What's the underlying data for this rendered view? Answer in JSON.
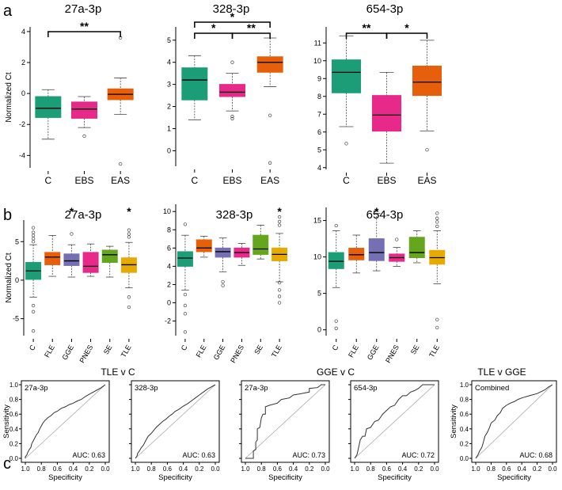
{
  "figure": {
    "panel_a_letter": "a",
    "panel_b_letter": "b",
    "panel_c_letter": "c"
  },
  "colors": {
    "C": "#1b9e77",
    "EBS": "#e7298a",
    "EAS": "#e6600c",
    "FLE": "#e6600c",
    "GGE": "#7570b3",
    "PNES": "#e7298a",
    "SE": "#66a61e",
    "TLE": "#e6ab02"
  },
  "chart_data": [
    {
      "type": "box",
      "id": "a1",
      "title": "27a-3p",
      "ylabel": "Normalized Ct",
      "ylim": [
        -4.8,
        4.3
      ],
      "yticks": [
        -4,
        -2,
        0,
        2,
        4
      ],
      "categories": [
        "C",
        "EBS",
        "EAS"
      ],
      "boxes": [
        {
          "cat": "C",
          "min": -2.95,
          "q1": -1.55,
          "median": -0.95,
          "q3": -0.2,
          "max": 0.25,
          "outliers": []
        },
        {
          "cat": "EBS",
          "min": -2.2,
          "q1": -1.6,
          "median": -1.0,
          "q3": -0.55,
          "max": -0.2,
          "outliers": [
            -2.75
          ]
        },
        {
          "cat": "EAS",
          "min": -1.35,
          "q1": -0.4,
          "median": -0.05,
          "q3": 0.3,
          "max": 1.0,
          "outliers": [
            3.6,
            -4.55
          ]
        }
      ],
      "brackets": [
        {
          "from": "C",
          "to": "EAS",
          "level": 0,
          "label": "**"
        }
      ]
    },
    {
      "type": "box",
      "id": "a2",
      "title": "328-3p",
      "ylabel": "",
      "ylim": [
        -0.7,
        5.6
      ],
      "yticks": [
        0,
        1,
        2,
        3,
        4,
        5
      ],
      "categories": [
        "C",
        "EBS",
        "EAS"
      ],
      "boxes": [
        {
          "cat": "C",
          "min": 1.4,
          "q1": 2.3,
          "median": 3.2,
          "q3": 3.75,
          "max": 4.3,
          "outliers": []
        },
        {
          "cat": "EBS",
          "min": 1.8,
          "q1": 2.45,
          "median": 2.65,
          "q3": 3.0,
          "max": 3.5,
          "outliers": [
            4.0,
            1.55,
            1.45
          ]
        },
        {
          "cat": "EAS",
          "min": 2.9,
          "q1": 3.55,
          "median": 4.0,
          "q3": 4.25,
          "max": 5.1,
          "outliers": [
            1.6,
            -0.55
          ]
        }
      ],
      "brackets": [
        {
          "from": "C",
          "to": "EBS",
          "level": 0,
          "label": "*"
        },
        {
          "from": "EBS",
          "to": "EAS",
          "level": 0,
          "label": "**"
        },
        {
          "from": "C",
          "to": "EAS",
          "level": 1,
          "label": "*"
        }
      ]
    },
    {
      "type": "box",
      "id": "a3",
      "title": "654-3p",
      "ylabel": "",
      "ylim": [
        3.9,
        11.9
      ],
      "yticks": [
        4,
        5,
        6,
        7,
        8,
        9,
        10,
        11
      ],
      "categories": [
        "C",
        "EBS",
        "EAS"
      ],
      "boxes": [
        {
          "cat": "C",
          "min": 6.3,
          "q1": 8.2,
          "median": 9.35,
          "q3": 10.05,
          "max": 11.4,
          "outliers": [
            5.35
          ]
        },
        {
          "cat": "EBS",
          "min": 4.25,
          "q1": 6.05,
          "median": 6.95,
          "q3": 8.05,
          "max": 9.35,
          "outliers": []
        },
        {
          "cat": "EAS",
          "min": 6.05,
          "q1": 8.05,
          "median": 8.8,
          "q3": 9.7,
          "max": 11.15,
          "outliers": [
            5.0
          ]
        }
      ],
      "brackets": [
        {
          "from": "C",
          "to": "EBS",
          "level": 0,
          "label": "**"
        },
        {
          "from": "EBS",
          "to": "EAS",
          "level": 0,
          "label": "*"
        }
      ]
    },
    {
      "type": "box",
      "id": "b1",
      "title": "27a-3p",
      "ylabel": "Normalized Ct",
      "ylim": [
        -7.2,
        7.8
      ],
      "yticks": [
        -5,
        0,
        5
      ],
      "categories": [
        "C",
        "FLE",
        "GGE",
        "PNES",
        "SE",
        "TLE"
      ],
      "boxes": [
        {
          "cat": "C",
          "min": -2.2,
          "q1": 0.1,
          "median": 1.2,
          "q3": 2.3,
          "max": 4.6,
          "outliers": [
            6.8,
            6.2,
            5.8,
            5.4,
            5.0,
            -3.3,
            -4.1,
            -6.6
          ]
        },
        {
          "cat": "FLE",
          "min": 0.5,
          "q1": 2.0,
          "median": 3.0,
          "q3": 3.6,
          "max": 5.8,
          "outliers": []
        },
        {
          "cat": "GGE",
          "min": 0.4,
          "q1": 1.9,
          "median": 2.5,
          "q3": 3.4,
          "max": 4.6,
          "outliers": [
            6.0
          ]
        },
        {
          "cat": "PNES",
          "min": 0.5,
          "q1": 1.0,
          "median": 1.8,
          "q3": 3.6,
          "max": 4.7,
          "outliers": []
        },
        {
          "cat": "SE",
          "min": 0.4,
          "q1": 2.3,
          "median": 3.3,
          "q3": 3.9,
          "max": 4.4,
          "outliers": []
        },
        {
          "cat": "TLE",
          "min": -1.0,
          "q1": 1.0,
          "median": 2.0,
          "q3": 2.9,
          "max": 4.9,
          "outliers": [
            6.5,
            6.0,
            5.6,
            -2.2,
            -3.5
          ]
        }
      ],
      "stars": [
        {
          "cat": "GGE",
          "label": "*"
        },
        {
          "cat": "TLE",
          "label": "*"
        }
      ]
    },
    {
      "type": "box",
      "id": "b2",
      "title": "328-3p",
      "ylabel": "",
      "ylim": [
        -3.6,
        10.8
      ],
      "yticks": [
        -2,
        0,
        2,
        4,
        6,
        8,
        10
      ],
      "categories": [
        "C",
        "FLE",
        "GGE",
        "PNES",
        "SE",
        "TLE"
      ],
      "boxes": [
        {
          "cat": "C",
          "min": 1.4,
          "q1": 4.0,
          "median": 4.9,
          "q3": 5.6,
          "max": 7.4,
          "outliers": [
            8.6,
            0.9,
            -0.3,
            -1.2,
            -3.2
          ]
        },
        {
          "cat": "FLE",
          "min": 5.0,
          "q1": 5.6,
          "median": 6.0,
          "q3": 6.9,
          "max": 7.3,
          "outliers": []
        },
        {
          "cat": "GGE",
          "min": 3.4,
          "q1": 5.0,
          "median": 5.6,
          "q3": 6.0,
          "max": 7.1,
          "outliers": [
            2.3,
            1.9
          ]
        },
        {
          "cat": "PNES",
          "min": 4.1,
          "q1": 5.0,
          "median": 5.5,
          "q3": 6.0,
          "max": 6.5,
          "outliers": []
        },
        {
          "cat": "SE",
          "min": 4.8,
          "q1": 5.3,
          "median": 5.9,
          "q3": 7.4,
          "max": 8.5,
          "outliers": []
        },
        {
          "cat": "TLE",
          "min": 2.3,
          "q1": 4.6,
          "median": 5.3,
          "q3": 6.0,
          "max": 7.6,
          "outliers": [
            9.4,
            8.9,
            8.5,
            2.2,
            1.4,
            0.7,
            0.0
          ]
        }
      ],
      "stars": [
        {
          "cat": "TLE",
          "label": "*"
        }
      ]
    },
    {
      "type": "box",
      "id": "b3",
      "title": "654-3p",
      "ylabel": "",
      "ylim": [
        -0.8,
        16.8
      ],
      "yticks": [
        0,
        5,
        10,
        15
      ],
      "categories": [
        "C",
        "FLE",
        "GGE",
        "PNES",
        "SE",
        "TLE"
      ],
      "boxes": [
        {
          "cat": "C",
          "min": 5.8,
          "q1": 8.4,
          "median": 9.4,
          "q3": 10.6,
          "max": 13.6,
          "outliers": [
            14.3,
            1.2,
            0.2
          ]
        },
        {
          "cat": "FLE",
          "min": 7.8,
          "q1": 9.6,
          "median": 10.3,
          "q3": 11.2,
          "max": 13.0,
          "outliers": []
        },
        {
          "cat": "GGE",
          "min": 8.1,
          "q1": 9.5,
          "median": 10.6,
          "q3": 12.5,
          "max": 16.0,
          "outliers": []
        },
        {
          "cat": "PNES",
          "min": 8.7,
          "q1": 9.4,
          "median": 9.9,
          "q3": 10.4,
          "max": 11.3,
          "outliers": [
            12.4
          ]
        },
        {
          "cat": "SE",
          "min": 9.2,
          "q1": 9.9,
          "median": 10.6,
          "q3": 12.7,
          "max": 13.6,
          "outliers": []
        },
        {
          "cat": "TLE",
          "min": 6.3,
          "q1": 9.0,
          "median": 9.9,
          "q3": 10.9,
          "max": 13.6,
          "outliers": [
            16.0,
            15.3,
            14.8,
            14.2,
            1.4,
            0.3
          ]
        }
      ],
      "stars": [
        {
          "cat": "GGE",
          "label": "*"
        }
      ]
    },
    {
      "type": "line",
      "id": "c1",
      "label": "27a-3p",
      "auc": "AUC: 0.63",
      "xlabel": "Specificity",
      "ylabel": "Sensitivity",
      "points": [
        [
          1.0,
          0.0
        ],
        [
          1.0,
          0.02
        ],
        [
          0.98,
          0.05
        ],
        [
          0.97,
          0.08
        ],
        [
          0.95,
          0.12
        ],
        [
          0.93,
          0.15
        ],
        [
          0.92,
          0.2
        ],
        [
          0.9,
          0.24
        ],
        [
          0.88,
          0.28
        ],
        [
          0.86,
          0.32
        ],
        [
          0.84,
          0.35
        ],
        [
          0.82,
          0.4
        ],
        [
          0.8,
          0.44
        ],
        [
          0.78,
          0.48
        ],
        [
          0.75,
          0.52
        ],
        [
          0.72,
          0.55
        ],
        [
          0.68,
          0.58
        ],
        [
          0.64,
          0.62
        ],
        [
          0.6,
          0.64
        ],
        [
          0.55,
          0.68
        ],
        [
          0.5,
          0.7
        ],
        [
          0.45,
          0.73
        ],
        [
          0.4,
          0.75
        ],
        [
          0.35,
          0.78
        ],
        [
          0.3,
          0.8
        ],
        [
          0.25,
          0.84
        ],
        [
          0.2,
          0.87
        ],
        [
          0.15,
          0.9
        ],
        [
          0.1,
          0.93
        ],
        [
          0.05,
          0.96
        ],
        [
          0.0,
          1.0
        ]
      ]
    },
    {
      "type": "line",
      "id": "c2",
      "label": "328-3p",
      "auc": "AUC: 0.63",
      "xlabel": "Specificity",
      "ylabel": "",
      "points": [
        [
          1.0,
          0.0
        ],
        [
          0.98,
          0.03
        ],
        [
          0.97,
          0.07
        ],
        [
          0.95,
          0.1
        ],
        [
          0.93,
          0.14
        ],
        [
          0.9,
          0.18
        ],
        [
          0.88,
          0.22
        ],
        [
          0.86,
          0.26
        ],
        [
          0.84,
          0.3
        ],
        [
          0.8,
          0.34
        ],
        [
          0.77,
          0.38
        ],
        [
          0.74,
          0.42
        ],
        [
          0.7,
          0.46
        ],
        [
          0.66,
          0.5
        ],
        [
          0.62,
          0.53
        ],
        [
          0.58,
          0.57
        ],
        [
          0.54,
          0.6
        ],
        [
          0.5,
          0.64
        ],
        [
          0.45,
          0.67
        ],
        [
          0.4,
          0.71
        ],
        [
          0.35,
          0.74
        ],
        [
          0.3,
          0.78
        ],
        [
          0.25,
          0.82
        ],
        [
          0.2,
          0.86
        ],
        [
          0.15,
          0.9
        ],
        [
          0.1,
          0.94
        ],
        [
          0.05,
          0.97
        ],
        [
          0.0,
          1.0
        ]
      ]
    },
    {
      "type": "line",
      "id": "c3",
      "label": "27a-3p",
      "auc": "AUC: 0.73",
      "xlabel": "Specificity",
      "ylabel": "",
      "points": [
        [
          1.0,
          0.0
        ],
        [
          0.9,
          0.0
        ],
        [
          0.9,
          0.1
        ],
        [
          0.87,
          0.12
        ],
        [
          0.87,
          0.22
        ],
        [
          0.85,
          0.25
        ],
        [
          0.85,
          0.4
        ],
        [
          0.82,
          0.42
        ],
        [
          0.8,
          0.55
        ],
        [
          0.78,
          0.6
        ],
        [
          0.75,
          0.6
        ],
        [
          0.75,
          0.7
        ],
        [
          0.7,
          0.72
        ],
        [
          0.6,
          0.75
        ],
        [
          0.55,
          0.8
        ],
        [
          0.45,
          0.82
        ],
        [
          0.4,
          0.86
        ],
        [
          0.3,
          0.88
        ],
        [
          0.2,
          0.9
        ],
        [
          0.2,
          0.95
        ],
        [
          0.1,
          0.96
        ],
        [
          0.05,
          1.0
        ],
        [
          0.0,
          1.0
        ]
      ]
    },
    {
      "type": "line",
      "id": "c4",
      "label": "654-3p",
      "auc": "AUC: 0.72",
      "xlabel": "Specificity",
      "ylabel": "",
      "points": [
        [
          1.0,
          0.0
        ],
        [
          0.97,
          0.05
        ],
        [
          0.95,
          0.15
        ],
        [
          0.93,
          0.25
        ],
        [
          0.9,
          0.3
        ],
        [
          0.87,
          0.3
        ],
        [
          0.85,
          0.4
        ],
        [
          0.8,
          0.42
        ],
        [
          0.75,
          0.5
        ],
        [
          0.7,
          0.52
        ],
        [
          0.65,
          0.6
        ],
        [
          0.6,
          0.65
        ],
        [
          0.55,
          0.7
        ],
        [
          0.5,
          0.72
        ],
        [
          0.45,
          0.8
        ],
        [
          0.4,
          0.85
        ],
        [
          0.35,
          0.85
        ],
        [
          0.3,
          0.9
        ],
        [
          0.25,
          0.92
        ],
        [
          0.2,
          0.95
        ],
        [
          0.15,
          1.0
        ],
        [
          0.0,
          1.0
        ]
      ]
    },
    {
      "type": "line",
      "id": "c5",
      "label": "Combined",
      "auc": "AUC: 0.68",
      "xlabel": "Specificity",
      "ylabel": "Sensitivity",
      "points": [
        [
          1.0,
          0.0
        ],
        [
          0.97,
          0.05
        ],
        [
          0.95,
          0.1
        ],
        [
          0.92,
          0.15
        ],
        [
          0.9,
          0.22
        ],
        [
          0.88,
          0.3
        ],
        [
          0.85,
          0.35
        ],
        [
          0.82,
          0.42
        ],
        [
          0.8,
          0.48
        ],
        [
          0.75,
          0.52
        ],
        [
          0.72,
          0.58
        ],
        [
          0.68,
          0.62
        ],
        [
          0.65,
          0.68
        ],
        [
          0.6,
          0.72
        ],
        [
          0.55,
          0.75
        ],
        [
          0.5,
          0.77
        ],
        [
          0.45,
          0.8
        ],
        [
          0.4,
          0.82
        ],
        [
          0.3,
          0.85
        ],
        [
          0.2,
          0.88
        ],
        [
          0.1,
          0.93
        ],
        [
          0.05,
          0.97
        ],
        [
          0.0,
          1.0
        ]
      ]
    }
  ],
  "roc_groups": {
    "g1": "TLE v C",
    "g2": "GGE v C",
    "g3": "TLE v GGE"
  },
  "roc_axis": {
    "ticks": [
      "1.0",
      "0.8",
      "0.6",
      "0.4",
      "0.2",
      "0.0"
    ]
  }
}
